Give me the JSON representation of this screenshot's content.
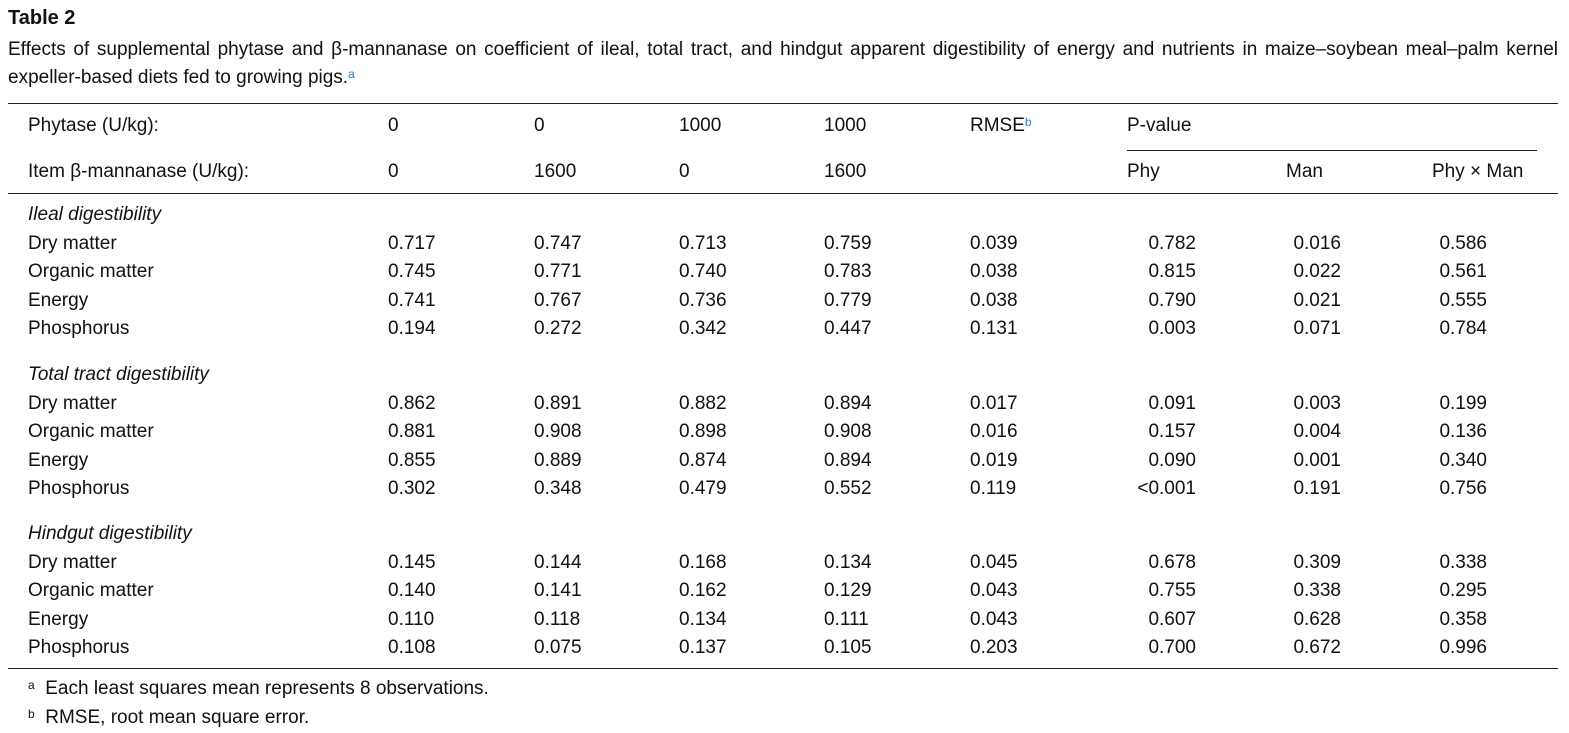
{
  "title": "Table 2",
  "caption": "Effects of supplemental phytase and β-mannanase on coefficient of ileal, total tract, and hindgut apparent digestibility of energy and nutrients in maize–soybean meal–palm kernel expeller-based diets fed to growing pigs.",
  "caption_footnote_mark": "a",
  "header": {
    "row1_label": "Phytase (U/kg):",
    "row1_values": [
      "0",
      "0",
      "1000",
      "1000"
    ],
    "rmse": "RMSE",
    "rmse_mark": "b",
    "pvalue": "P-value",
    "row2_label": "Item β-mannanase (U/kg):",
    "row2_values": [
      "0",
      "1600",
      "0",
      "1600"
    ],
    "pvalue_cols": [
      "Phy",
      "Man",
      "Phy × Man"
    ]
  },
  "sections": [
    {
      "title": "Ileal digestibility",
      "rows": [
        {
          "item": "Dry matter",
          "values": [
            "0.717",
            "0.747",
            "0.713",
            "0.759",
            "0.039",
            "0.782",
            "0.016",
            "0.586"
          ]
        },
        {
          "item": "Organic matter",
          "values": [
            "0.745",
            "0.771",
            "0.740",
            "0.783",
            "0.038",
            "0.815",
            "0.022",
            "0.561"
          ]
        },
        {
          "item": "Energy",
          "values": [
            "0.741",
            "0.767",
            "0.736",
            "0.779",
            "0.038",
            "0.790",
            "0.021",
            "0.555"
          ]
        },
        {
          "item": "Phosphorus",
          "values": [
            "0.194",
            "0.272",
            "0.342",
            "0.447",
            "0.131",
            "0.003",
            "0.071",
            "0.784"
          ]
        }
      ]
    },
    {
      "title": "Total tract digestibility",
      "rows": [
        {
          "item": "Dry matter",
          "values": [
            "0.862",
            "0.891",
            "0.882",
            "0.894",
            "0.017",
            "0.091",
            "0.003",
            "0.199"
          ]
        },
        {
          "item": "Organic matter",
          "values": [
            "0.881",
            "0.908",
            "0.898",
            "0.908",
            "0.016",
            "0.157",
            "0.004",
            "0.136"
          ]
        },
        {
          "item": "Energy",
          "values": [
            "0.855",
            "0.889",
            "0.874",
            "0.894",
            "0.019",
            "0.090",
            "0.001",
            "0.340"
          ]
        },
        {
          "item": "Phosphorus",
          "values": [
            "0.302",
            "0.348",
            "0.479",
            "0.552",
            "0.119",
            "<0.001",
            "0.191",
            "0.756"
          ]
        }
      ]
    },
    {
      "title": "Hindgut digestibility",
      "rows": [
        {
          "item": "Dry matter",
          "values": [
            "0.145",
            "0.144",
            "0.168",
            "0.134",
            "0.045",
            "0.678",
            "0.309",
            "0.338"
          ]
        },
        {
          "item": "Organic matter",
          "values": [
            "0.140",
            "0.141",
            "0.162",
            "0.129",
            "0.043",
            "0.755",
            "0.338",
            "0.295"
          ]
        },
        {
          "item": "Energy",
          "values": [
            "0.110",
            "0.118",
            "0.134",
            "0.111",
            "0.043",
            "0.607",
            "0.628",
            "0.358"
          ]
        },
        {
          "item": "Phosphorus",
          "values": [
            "0.108",
            "0.075",
            "0.137",
            "0.105",
            "0.203",
            "0.700",
            "0.672",
            "0.996"
          ]
        }
      ]
    }
  ],
  "footnotes": [
    {
      "mark": "a",
      "text": "Each least squares mean represents 8 observations."
    },
    {
      "mark": "b",
      "text": "RMSE, root mean square error."
    }
  ]
}
